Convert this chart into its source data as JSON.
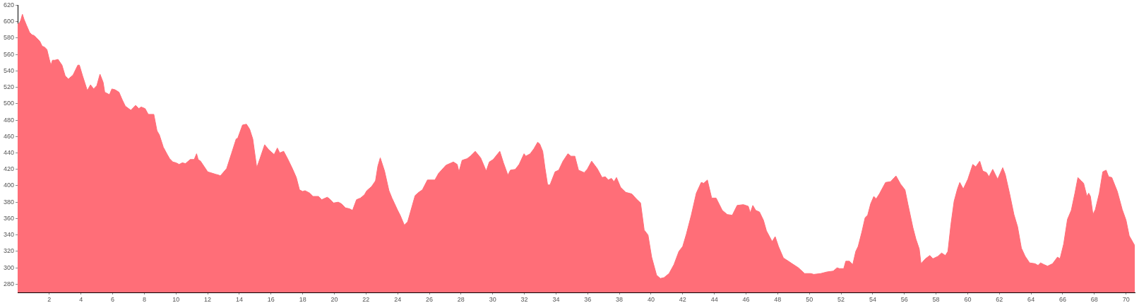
{
  "chart_data": {
    "type": "area",
    "color": "#ff6e78",
    "x": [
      0,
      0.1,
      0.2,
      0.3,
      0.4,
      0.55,
      0.75,
      0.9,
      1.05,
      1.2,
      1.4,
      1.55,
      1.7,
      1.85,
      2.0,
      2.1,
      2.2,
      2.35,
      2.55,
      2.8,
      3.0,
      3.2,
      3.5,
      3.8,
      3.9,
      4.1,
      4.4,
      4.6,
      4.8,
      5.0,
      5.2,
      5.4,
      5.5,
      5.8,
      5.95,
      6.15,
      6.4,
      6.6,
      6.8,
      7.15,
      7.45,
      7.65,
      7.8,
      8.05,
      8.25,
      8.6,
      8.8,
      8.95,
      9.2,
      9.45,
      9.6,
      9.8,
      10.0,
      10.2,
      10.4,
      10.6,
      10.9,
      11.15,
      11.3,
      11.4,
      11.55,
      12.0,
      12.5,
      12.7,
      12.8,
      13.2,
      13.5,
      13.8,
      13.9,
      14.2,
      14.45,
      14.65,
      14.85,
      15.1,
      15.3,
      15.6,
      15.85,
      16.2,
      16.4,
      16.55,
      16.8,
      17.05,
      17.35,
      17.6,
      17.8,
      18.0,
      18.15,
      18.45,
      18.65,
      19.0,
      19.2,
      19.55,
      19.7,
      19.95,
      20.25,
      20.45,
      20.7,
      20.95,
      21.15,
      21.4,
      21.65,
      21.9,
      22.05,
      22.35,
      22.6,
      22.75,
      22.9,
      23.17,
      23.45,
      23.64,
      24.0,
      24.16,
      24.42,
      24.63,
      25.1,
      25.33,
      25.56,
      25.88,
      26.35,
      26.58,
      27.05,
      27.52,
      27.76,
      27.87,
      28.07,
      28.38,
      28.59,
      28.9,
      29.24,
      29.59,
      29.79,
      30.03,
      30.45,
      30.68,
      30.96,
      31.12,
      31.43,
      31.67,
      31.98,
      32.09,
      32.37,
      32.6,
      32.84,
      32.97,
      33.16,
      33.31,
      33.47,
      33.62,
      33.94,
      34.17,
      34.44,
      34.75,
      34.95,
      35.19,
      35.42,
      35.78,
      35.97,
      36.25,
      36.6,
      36.91,
      37.11,
      37.3,
      37.5,
      37.66,
      37.82,
      38.08,
      38.4,
      38.79,
      39.07,
      39.34,
      39.57,
      39.81,
      40.04,
      40.35,
      40.59,
      40.82,
      41.14,
      41.45,
      41.76,
      42.0,
      42.23,
      42.54,
      42.86,
      43.17,
      43.33,
      43.56,
      43.83,
      44.11,
      44.5,
      44.81,
      45.13,
      45.44,
      45.83,
      46.14,
      46.27,
      46.43,
      46.61,
      46.85,
      47.1,
      47.29,
      47.65,
      47.84,
      48.05,
      48.36,
      48.68,
      48.91,
      49.31,
      49.7,
      50.09,
      50.28,
      50.72,
      51.12,
      51.51,
      51.75,
      51.9,
      52.17,
      52.3,
      52.53,
      52.74,
      52.93,
      53.08,
      53.32,
      53.52,
      53.68,
      53.87,
      54.07,
      54.22,
      54.42,
      54.81,
      55.13,
      55.47,
      55.76,
      56.04,
      56.23,
      56.54,
      56.73,
      56.94,
      57.05,
      57.33,
      57.61,
      57.8,
      58.12,
      58.35,
      58.59,
      58.75,
      58.94,
      59.14,
      59.35,
      59.5,
      59.72,
      60.01,
      60.32,
      60.51,
      60.76,
      60.95,
      61.19,
      61.34,
      61.58,
      61.89,
      62.21,
      62.37,
      62.65,
      62.92,
      63.15,
      63.39,
      63.63,
      63.91,
      64.25,
      64.44,
      64.6,
      64.81,
      65.04,
      65.36,
      65.67,
      65.83,
      66.06,
      66.3,
      66.54,
      66.77,
      66.96,
      67.17,
      67.32,
      67.53,
      67.64,
      67.75,
      67.91,
      68.06,
      68.31,
      68.53,
      68.74,
      68.9,
      69.1,
      69.45,
      69.76,
      70.0,
      70.2,
      70.55
    ],
    "values": [
      597,
      598,
      602,
      609,
      603,
      596,
      587,
      584,
      583,
      580,
      576,
      570,
      569,
      566,
      554,
      547,
      553,
      553,
      554,
      547,
      534,
      530,
      535,
      547,
      547,
      534,
      516,
      523,
      518,
      522,
      536,
      526,
      514,
      511,
      518,
      517,
      514,
      505,
      497,
      492,
      498,
      494,
      496,
      494,
      487,
      487,
      467,
      462,
      447,
      438,
      433,
      429,
      428,
      426,
      428,
      427,
      432,
      432,
      439,
      432,
      430,
      417,
      414,
      413,
      412,
      421,
      439,
      457,
      458,
      474,
      475,
      469,
      457,
      422,
      433,
      450,
      444,
      438,
      446,
      440,
      442,
      433,
      421,
      410,
      395,
      393,
      394,
      391,
      387,
      387,
      383,
      386,
      384,
      379,
      380,
      378,
      373,
      372,
      370,
      383,
      385,
      389,
      394,
      399,
      406,
      424,
      434,
      418,
      394,
      385,
      370,
      364,
      352,
      356,
      388,
      392,
      395,
      407,
      407,
      415,
      425,
      429,
      426,
      417,
      431,
      433,
      436,
      442,
      434,
      418,
      429,
      432,
      442,
      428,
      413,
      419,
      420,
      426,
      439,
      436,
      439,
      445,
      453,
      451,
      442,
      421,
      401,
      401,
      417,
      419,
      430,
      439,
      436,
      436,
      419,
      416,
      420,
      430,
      421,
      410,
      411,
      407,
      409,
      405,
      410,
      398,
      392,
      390,
      384,
      379,
      346,
      340,
      313,
      291,
      287,
      288,
      293,
      304,
      320,
      326,
      341,
      364,
      391,
      404,
      403,
      407,
      385,
      385,
      370,
      365,
      364,
      376,
      377,
      375,
      367,
      376,
      370,
      368,
      358,
      345,
      332,
      338,
      326,
      312,
      308,
      305,
      300,
      293,
      293,
      292,
      293,
      295,
      296,
      300,
      299,
      299,
      308,
      308,
      304,
      320,
      326,
      344,
      361,
      364,
      378,
      387,
      384,
      390,
      404,
      405,
      412,
      402,
      395,
      377,
      349,
      335,
      323,
      305,
      311,
      315,
      311,
      314,
      318,
      315,
      320,
      353,
      381,
      396,
      404,
      396,
      408,
      426,
      423,
      430,
      418,
      416,
      411,
      420,
      408,
      422,
      414,
      390,
      365,
      350,
      324,
      314,
      306,
      305,
      303,
      306,
      304,
      302,
      305,
      313,
      311,
      329,
      359,
      370,
      391,
      410,
      406,
      403,
      387,
      391,
      387,
      365,
      371,
      391,
      417,
      419,
      411,
      410,
      393,
      371,
      358,
      339,
      327
    ],
    "xlim": [
      0,
      70.55
    ],
    "xticks": [
      2,
      4,
      6,
      8,
      10,
      12,
      14,
      16,
      18,
      20,
      22,
      24,
      26,
      28,
      30,
      32,
      34,
      36,
      38,
      40,
      42,
      44,
      46,
      48,
      50,
      52,
      54,
      56,
      58,
      60,
      62,
      64,
      66,
      68,
      70
    ],
    "ylim": [
      270,
      620
    ],
    "yticks": [
      280,
      300,
      320,
      340,
      360,
      380,
      400,
      420,
      440,
      460,
      480,
      500,
      520,
      540,
      560,
      580,
      600,
      620
    ]
  }
}
